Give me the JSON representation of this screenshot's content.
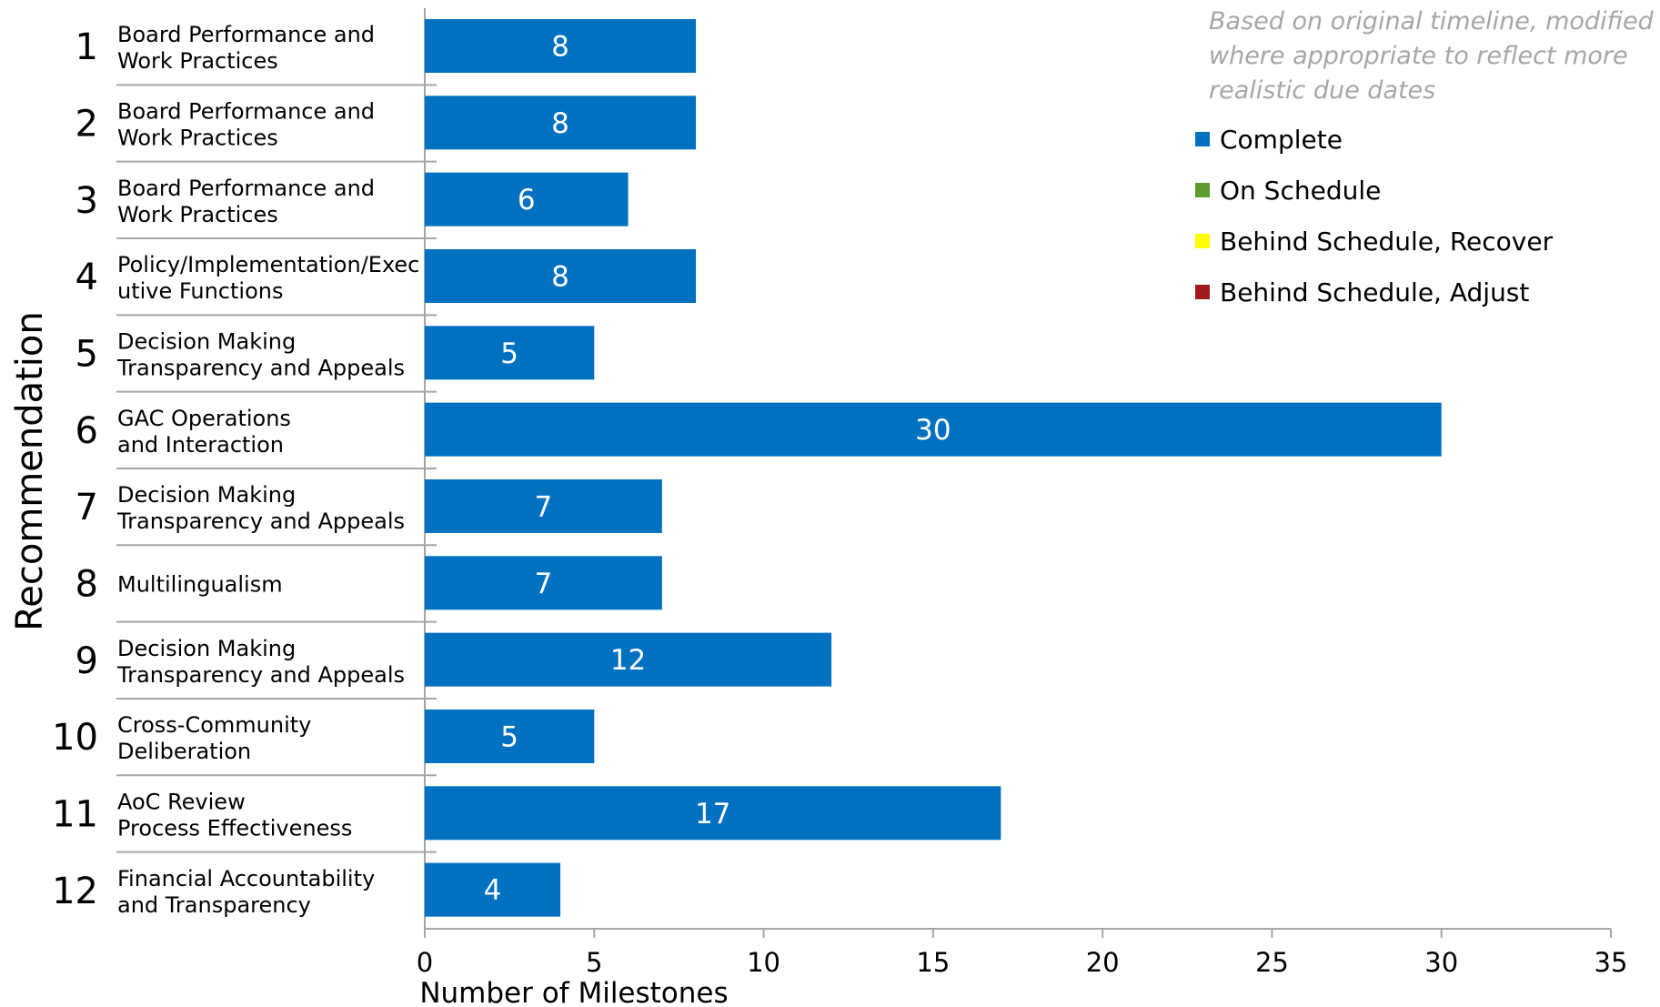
{
  "chart_data": {
    "type": "bar",
    "orientation": "horizontal",
    "ylabel": "Recommendation",
    "xlabel": "Number of Milestones",
    "xlim": [
      0,
      35
    ],
    "xticks": [
      "0",
      "5",
      "10",
      "15",
      "20",
      "25",
      "30",
      "35"
    ],
    "grid": false,
    "legend_position": "top-right",
    "annotation": [
      "Based on original timeline, modified",
      "where appropriate to reflect more",
      "realistic due dates"
    ],
    "legend": [
      {
        "label": "Complete",
        "color": "#0070c0"
      },
      {
        "label": "On Schedule",
        "color": "#5b9a2e"
      },
      {
        "label": "Behind Schedule, Recover",
        "color": "#ffff00"
      },
      {
        "label": "Behind Schedule, Adjust",
        "color": "#a01c1c"
      }
    ],
    "categories": [
      {
        "number": "1",
        "name": [
          "Board Performance and",
          "Work Practices"
        ]
      },
      {
        "number": "2",
        "name": [
          "Board Performance and",
          "Work Practices"
        ]
      },
      {
        "number": "3",
        "name": [
          "Board Performance and",
          "Work Practices"
        ]
      },
      {
        "number": "4",
        "name": [
          "Policy/Implementation/Exec",
          "utive Functions"
        ]
      },
      {
        "number": "5",
        "name": [
          "Decision Making",
          "Transparency and Appeals"
        ]
      },
      {
        "number": "6",
        "name": [
          "GAC Operations",
          "and Interaction"
        ]
      },
      {
        "number": "7",
        "name": [
          "Decision Making",
          "Transparency and Appeals"
        ]
      },
      {
        "number": "8",
        "name": [
          "Multilingualism"
        ]
      },
      {
        "number": "9",
        "name": [
          "Decision Making",
          "Transparency and Appeals"
        ]
      },
      {
        "number": "10",
        "name": [
          "Cross-Community",
          "Deliberation"
        ]
      },
      {
        "number": "11",
        "name": [
          "AoC Review",
          "Process Effectiveness"
        ]
      },
      {
        "number": "12",
        "name": [
          "Financial Accountability",
          "and Transparency"
        ]
      }
    ],
    "series": [
      {
        "name": "Complete",
        "color": "#0070c0",
        "values": [
          8,
          8,
          6,
          8,
          5,
          30,
          7,
          7,
          12,
          5,
          17,
          4
        ]
      }
    ]
  }
}
